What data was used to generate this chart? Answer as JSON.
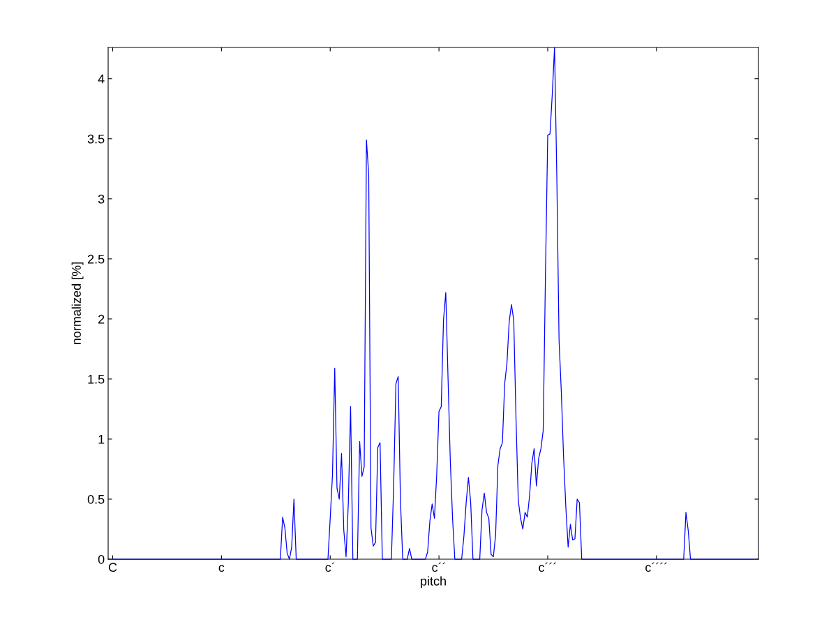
{
  "chart_data": {
    "type": "line",
    "xlabel": "pitch",
    "ylabel": "normalized [%]",
    "ylim": [
      0,
      4.26
    ],
    "yticks": [
      0,
      0.5,
      1,
      1.5,
      2,
      2.5,
      3,
      3.5,
      4
    ],
    "categories": [
      "C",
      null,
      null,
      null,
      null,
      null,
      null,
      null,
      null,
      null,
      null,
      null,
      null,
      null,
      null,
      null,
      null,
      null,
      null,
      null,
      null,
      null,
      null,
      null,
      null,
      null,
      null,
      null,
      null,
      null,
      null,
      null,
      null,
      null,
      null,
      null,
      null,
      null,
      null,
      null,
      null,
      null,
      null,
      null,
      null,
      null,
      null,
      null,
      "c",
      null,
      null,
      null,
      null,
      null,
      null,
      null,
      null,
      null,
      null,
      null,
      null,
      null,
      null,
      null,
      null,
      null,
      null,
      null,
      null,
      null,
      null,
      null,
      null,
      null,
      null,
      null,
      null,
      null,
      null,
      null,
      null,
      null,
      null,
      null,
      null,
      null,
      null,
      null,
      null,
      null,
      null,
      null,
      null,
      null,
      null,
      null,
      "c´",
      null,
      null,
      null,
      null,
      null,
      null,
      null,
      null,
      null,
      null,
      null,
      null,
      null,
      null,
      null,
      null,
      null,
      null,
      null,
      null,
      null,
      null,
      null,
      null,
      null,
      null,
      null,
      null,
      null,
      null,
      null,
      null,
      null,
      null,
      null,
      null,
      null,
      null,
      null,
      null,
      null,
      null,
      null,
      null,
      null,
      null,
      null,
      "c´´",
      null,
      null,
      null,
      null,
      null,
      null,
      null,
      null,
      null,
      null,
      null,
      null,
      null,
      null,
      null,
      null,
      null,
      null,
      null,
      null,
      null,
      null,
      null,
      null,
      null,
      null,
      null,
      null,
      null,
      null,
      null,
      null,
      null,
      null,
      null,
      null,
      null,
      null,
      null,
      null,
      null,
      null,
      null,
      null,
      null,
      null,
      null,
      "c´´´",
      null,
      null,
      null,
      null,
      null,
      null,
      null,
      null,
      null,
      null,
      null,
      null,
      null,
      null,
      null,
      null,
      null,
      null,
      null,
      null,
      null,
      null,
      null,
      null,
      null,
      null,
      null,
      null,
      null,
      null,
      null,
      null,
      null,
      null,
      null,
      null,
      null,
      null,
      null,
      null,
      null,
      null,
      null,
      null,
      null,
      null,
      null,
      "c´´´´",
      null,
      null,
      null,
      null,
      null,
      null,
      null,
      null,
      null,
      null,
      null,
      null,
      null,
      null,
      null,
      null,
      null,
      null,
      null,
      null,
      null,
      null,
      null,
      null,
      null,
      null,
      null,
      null,
      null,
      null,
      null,
      null,
      null,
      null,
      null,
      null,
      null,
      null,
      null,
      null,
      null,
      null,
      null
    ],
    "series": [
      {
        "color": "#0000ff",
        "values": [
          0,
          0,
          0,
          0,
          0,
          0,
          0,
          0,
          0,
          0,
          0,
          0,
          0,
          0,
          0,
          0,
          0,
          0,
          0,
          0,
          0,
          0,
          0,
          0,
          0,
          0,
          0,
          0,
          0,
          0,
          0,
          0,
          0,
          0,
          0,
          0,
          0,
          0,
          0,
          0,
          0,
          0,
          0,
          0,
          0,
          0,
          0,
          0,
          0,
          0,
          0,
          0,
          0,
          0,
          0,
          0,
          0,
          0,
          0,
          0,
          0,
          0,
          0,
          0,
          0,
          0,
          0,
          0,
          0,
          0,
          0,
          0,
          0,
          0,
          0,
          0.35,
          0.26,
          0.05,
          0,
          0.1,
          0.5,
          0,
          0,
          0,
          0,
          0,
          0,
          0,
          0,
          0,
          0,
          0,
          0,
          0,
          0,
          0,
          0.34,
          0.7,
          1.59,
          0.59,
          0.5,
          0.88,
          0.24,
          0.02,
          0.47,
          1.27,
          0,
          0,
          0,
          0.98,
          0.69,
          0.77,
          3.49,
          3.2,
          0.26,
          0.11,
          0.14,
          0.93,
          0.97,
          0,
          0,
          0,
          0,
          0,
          0.61,
          1.46,
          1.52,
          0.49,
          0,
          0,
          0,
          0.09,
          0,
          0,
          0,
          0,
          0,
          0,
          0,
          0.06,
          0.32,
          0.46,
          0.34,
          0.7,
          1.23,
          1.27,
          1.99,
          2.22,
          1.51,
          0.82,
          0.34,
          0,
          0,
          0,
          0,
          0.19,
          0.47,
          0.68,
          0.47,
          0,
          0,
          0,
          0,
          0.41,
          0.55,
          0.39,
          0.34,
          0.04,
          0.02,
          0.2,
          0.78,
          0.92,
          0.97,
          1.46,
          1.63,
          1.98,
          2.12,
          1.99,
          1.17,
          0.49,
          0.34,
          0.25,
          0.39,
          0.35,
          0.53,
          0.8,
          0.92,
          0.61,
          0.84,
          0.92,
          1.07,
          2.37,
          3.53,
          3.54,
          3.87,
          4.26,
          3.2,
          1.82,
          1.39,
          0.85,
          0.43,
          0.1,
          0.29,
          0.16,
          0.17,
          0.5,
          0.47,
          0,
          0,
          0,
          0,
          0,
          0,
          0,
          0,
          0,
          0,
          0,
          0,
          0,
          0,
          0,
          0,
          0,
          0,
          0,
          0,
          0,
          0,
          0,
          0,
          0,
          0,
          0,
          0,
          0,
          0,
          0,
          0,
          0,
          0,
          0,
          0,
          0,
          0,
          0,
          0,
          0,
          0,
          0,
          0,
          0,
          0,
          0.39,
          0.24,
          0,
          0,
          0,
          0,
          0,
          0,
          0,
          0,
          0,
          0,
          0,
          0,
          0,
          0,
          0,
          0,
          0,
          0,
          0,
          0,
          0,
          0,
          0,
          0,
          0,
          0,
          0,
          0,
          0
        ]
      }
    ]
  }
}
